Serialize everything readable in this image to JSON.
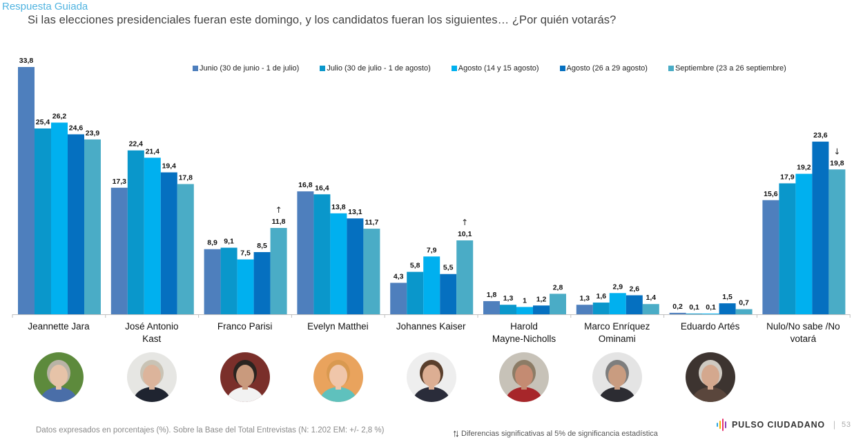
{
  "header": {
    "tag": "Respuesta Guiada",
    "question": "Si las elecciones presidenciales fueran este domingo, y los candidatos fueran los siguientes… ¿Por quién votarás?"
  },
  "chart_data": {
    "type": "bar",
    "title": "Si las elecciones presidenciales fueran este domingo, y los candidatos fueran los siguientes… ¿Por quién votarás?",
    "xlabel": "",
    "ylabel": "",
    "ylim": [
      0,
      35
    ],
    "grid": false,
    "legend_position": "top",
    "categories": [
      "Jeannette Jara",
      "José Antonio Kast",
      "Franco Parisi",
      "Evelyn Matthei",
      "Johannes Kaiser",
      "Harold Mayne-Nicholls",
      "Marco Enríquez Ominami",
      "Eduardo Artés",
      "Nulo/No sabe /No votará"
    ],
    "category_lines": [
      [
        "Jeannette Jara"
      ],
      [
        "José Antonio",
        "Kast"
      ],
      [
        "Franco Parisi"
      ],
      [
        "Evelyn Matthei"
      ],
      [
        "Johannes Kaiser"
      ],
      [
        "Harold",
        "Mayne-Nicholls"
      ],
      [
        "Marco Enríquez",
        "Ominami"
      ],
      [
        "Eduardo Artés"
      ],
      [
        "Nulo/No sabe /No",
        "votará"
      ]
    ],
    "series": [
      {
        "name": "Junio (30 de junio - 1 de julio)",
        "color": "#4e7fbd",
        "values": [
          33.8,
          17.3,
          8.9,
          16.8,
          4.3,
          1.8,
          1.3,
          0.2,
          15.6
        ],
        "labels": [
          "33,8",
          "17,3",
          "8,9",
          "16,8",
          "4,3",
          "1,8",
          "1,3",
          "0,2",
          "15,6"
        ]
      },
      {
        "name": "Julio (30 de julio - 1 de agosto)",
        "color": "#0a97cb",
        "values": [
          25.4,
          22.4,
          9.1,
          16.4,
          5.8,
          1.3,
          1.6,
          0.1,
          17.9
        ],
        "labels": [
          "25,4",
          "22,4",
          "9,1",
          "16,4",
          "5,8",
          "1,3",
          "1,6",
          "0,1",
          "17,9"
        ]
      },
      {
        "name": "Agosto (14 y 15 agosto)",
        "color": "#00b0ef",
        "values": [
          26.2,
          21.4,
          7.5,
          13.8,
          7.9,
          1.0,
          2.9,
          0.1,
          19.2
        ],
        "labels": [
          "26,2",
          "21,4",
          "7,5",
          "13,8",
          "7,9",
          "1",
          "2,9",
          "0,1",
          "19,2"
        ]
      },
      {
        "name": "Agosto (26 a 29 agosto)",
        "color": "#0570c0",
        "values": [
          24.6,
          19.4,
          8.5,
          13.1,
          5.5,
          1.2,
          2.6,
          1.5,
          23.6
        ],
        "labels": [
          "24,6",
          "19,4",
          "8,5",
          "13,1",
          "5,5",
          "1,2",
          "2,6",
          "1,5",
          "23,6"
        ]
      },
      {
        "name": "Septiembre (23 a 26 septiembre)",
        "color": "#4aacc6",
        "values": [
          23.9,
          17.8,
          11.8,
          11.7,
          10.1,
          2.8,
          1.4,
          0.7,
          19.8
        ],
        "labels": [
          "23,9",
          "17,8",
          "11,8",
          "11,7",
          "10,1",
          "2,8",
          "1,4",
          "0,7",
          "19,8"
        ]
      }
    ],
    "annotations": [
      {
        "category": "Franco Parisi",
        "series": "Septiembre (23 a 26 septiembre)",
        "mark": "↑",
        "meaning": "significant increase"
      },
      {
        "category": "Johannes Kaiser",
        "series": "Septiembre (23 a 26 septiembre)",
        "mark": "↑",
        "meaning": "significant increase"
      },
      {
        "category": "Nulo/No sabe /No votará",
        "series": "Septiembre (23 a 26 septiembre)",
        "mark": "↓",
        "meaning": "significant decrease"
      }
    ]
  },
  "avatars": [
    {
      "name": "Jeannette Jara",
      "bg": "#5d8a3c",
      "skin": "#e6c3a8",
      "hair": "#b9b3a6",
      "shirt": "#4a6ea8"
    },
    {
      "name": "José Antonio Kast",
      "bg": "#e6e6e3",
      "skin": "#dcb49b",
      "hair": "#c9c3b5",
      "shirt": "#1f2430"
    },
    {
      "name": "Franco Parisi",
      "bg": "#7a2f2a",
      "skin": "#c99a7d",
      "hair": "#2a2420",
      "shirt": "#f2f2f2"
    },
    {
      "name": "Evelyn Matthei",
      "bg": "#e9a35d",
      "skin": "#f0c6aa",
      "hair": "#d99950",
      "shirt": "#5fc1bd"
    },
    {
      "name": "Johannes Kaiser",
      "bg": "#eeeeee",
      "skin": "#dcae93",
      "hair": "#5a3f2c",
      "shirt": "#2a2c3a"
    },
    {
      "name": "Harold Mayne-Nicholls",
      "bg": "#c7c2b8",
      "skin": "#c48b72",
      "hair": "#8c7c66",
      "shirt": "#a7262a"
    },
    {
      "name": "Marco Enríquez Ominami",
      "bg": "#e4e4e4",
      "skin": "#c99c80",
      "hair": "#7e7e7e",
      "shirt": "#2c2c32"
    },
    {
      "name": "Eduardo Artés",
      "bg": "#3d3430",
      "skin": "#d4a88e",
      "hair": "#cfcac2",
      "shirt": "#5a463c"
    }
  ],
  "footer": {
    "note": "Datos expresados en porcentajes (%). Sobre la Base del Total Entrevistas (N: 1.202  EM: +/- 2,8 %)",
    "significance_arrows": "↑↓",
    "significance_note": "Diferencias  significativas  al 5% de significancia estadística",
    "brand": "PULSO CIUDADANO",
    "page_number": "53",
    "brand_colors": [
      "#2aa7df",
      "#f4b400",
      "#e8336d",
      "#8a3fb8"
    ]
  }
}
